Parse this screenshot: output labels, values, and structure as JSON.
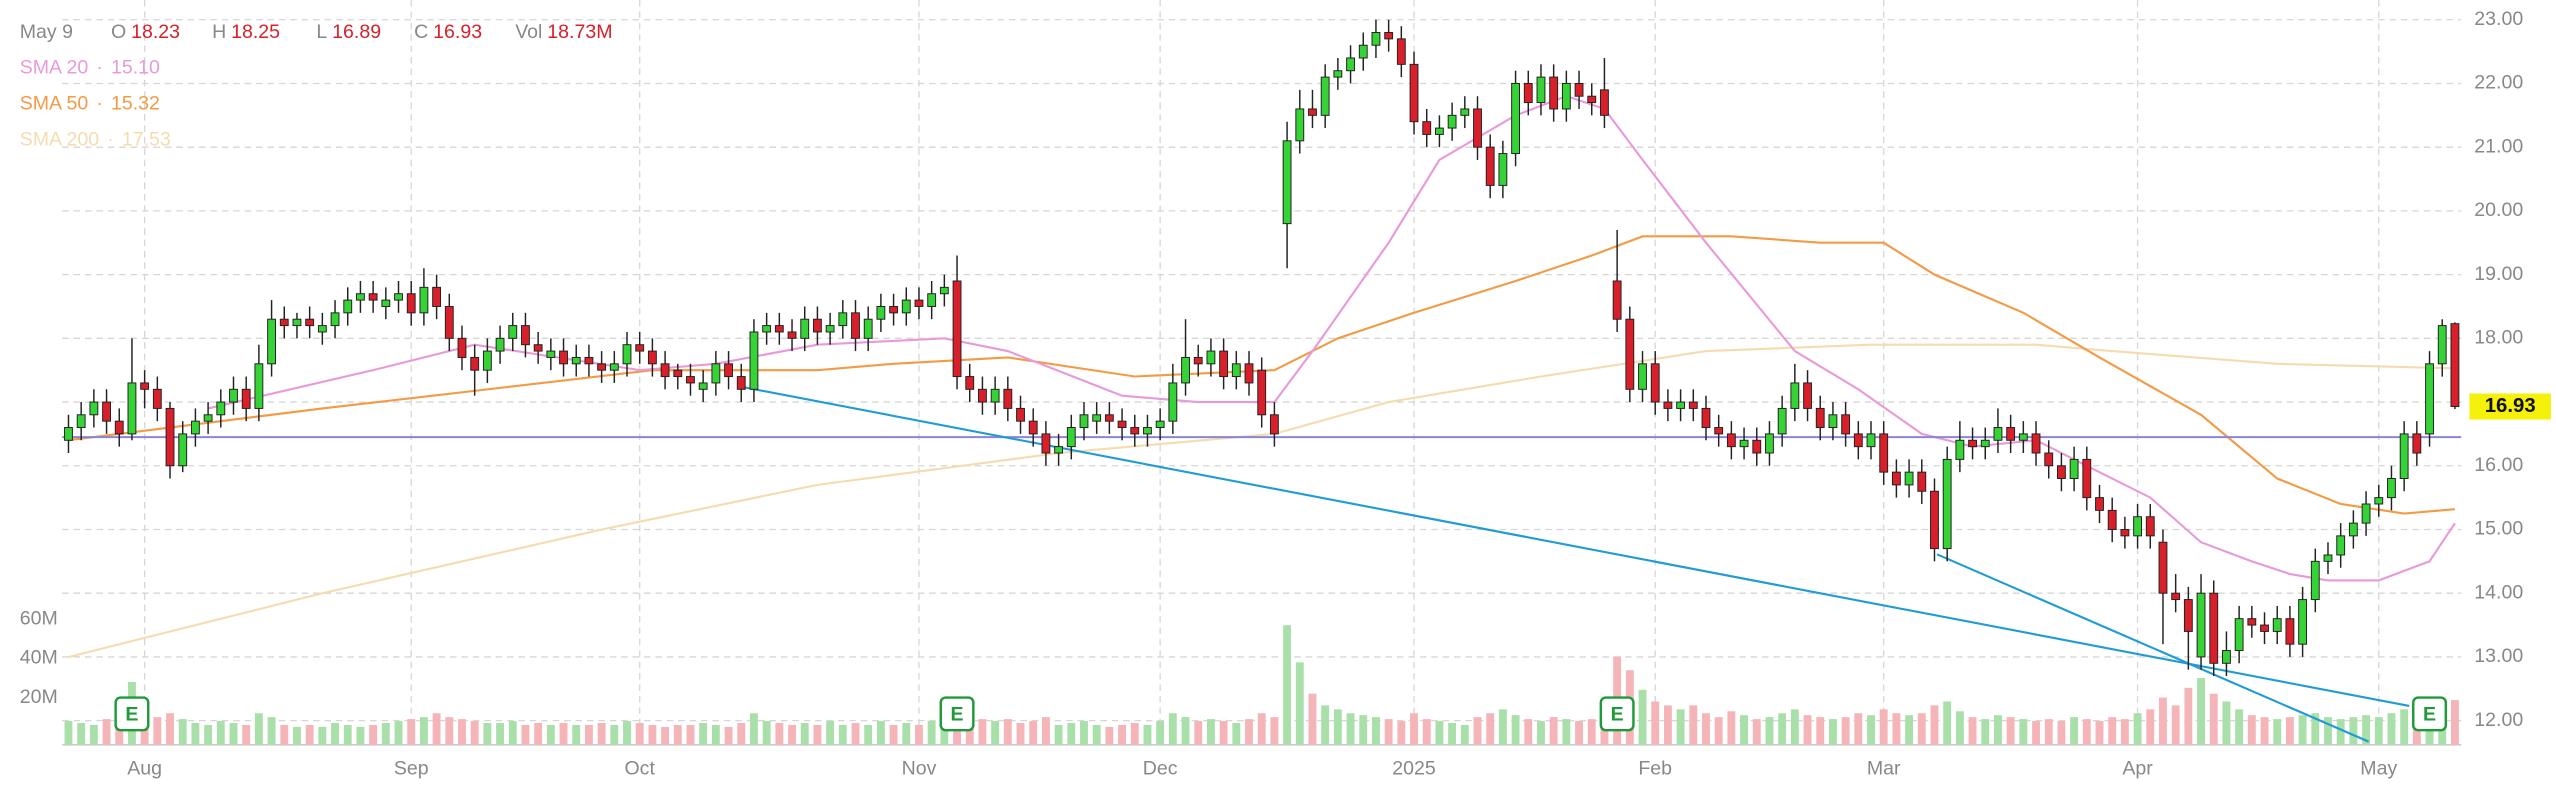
{
  "chart_data": {
    "type": "candlestick",
    "header": {
      "date": "May 9",
      "labels": [
        "O",
        "H",
        "L",
        "C",
        "Vol"
      ],
      "volume": "18.73M"
    },
    "xlim": [
      -0.5,
      188.5
    ],
    "xticks": [
      {
        "value": 6,
        "label": "Aug"
      },
      {
        "value": 27,
        "label": "Sep"
      },
      {
        "value": 45,
        "label": "Oct"
      },
      {
        "value": 67,
        "label": "Nov"
      },
      {
        "value": 86,
        "label": "Dec"
      },
      {
        "value": 106,
        "label": "2025"
      },
      {
        "value": 125,
        "label": "Feb"
      },
      {
        "value": 143,
        "label": "Mar"
      },
      {
        "value": 163,
        "label": "Apr"
      },
      {
        "value": 182,
        "label": "May"
      }
    ],
    "ylim": [
      11.62,
      23.31
    ],
    "yticks": [
      {
        "value": 12,
        "label": "12.00"
      },
      {
        "value": 13,
        "label": "13.00"
      },
      {
        "value": 14,
        "label": "14.00"
      },
      {
        "value": 15,
        "label": "15.00"
      },
      {
        "value": 16,
        "label": "16.00"
      },
      {
        "value": 17,
        "label": "17.00"
      },
      {
        "value": 18,
        "label": "18.00"
      },
      {
        "value": 19,
        "label": "19.00"
      },
      {
        "value": 20,
        "label": "20.00"
      },
      {
        "value": 21,
        "label": "21.00"
      },
      {
        "value": 22,
        "label": "22.00"
      },
      {
        "value": 23,
        "label": "23.00"
      }
    ],
    "vlim": [
      0,
      100
    ],
    "vticks": [
      {
        "value": 20,
        "label": "20M"
      },
      {
        "value": 40,
        "label": "40M"
      },
      {
        "value": 60,
        "label": "60M"
      }
    ],
    "grid": true,
    "up_color": "#35d335",
    "down_color": "#d9202a",
    "vol_up_color": "#a9dfa9",
    "vol_down_color": "#f5b5b8",
    "open": [
      16.4,
      16.6,
      16.8,
      17.0,
      16.7,
      16.5,
      17.3,
      17.2,
      16.9,
      16.0,
      16.5,
      16.7,
      16.8,
      17.0,
      17.2,
      16.9,
      17.6,
      18.3,
      18.2,
      18.3,
      18.1,
      18.2,
      18.4,
      18.6,
      18.7,
      18.5,
      18.6,
      18.7,
      18.4,
      18.8,
      18.5,
      18.0,
      17.7,
      17.5,
      17.8,
      18.0,
      18.2,
      17.9,
      17.7,
      17.8,
      17.6,
      17.7,
      17.6,
      17.5,
      17.6,
      17.9,
      17.8,
      17.6,
      17.5,
      17.4,
      17.2,
      17.3,
      17.6,
      17.4,
      17.2,
      18.1,
      18.2,
      18.1,
      18.0,
      18.3,
      18.1,
      18.2,
      18.4,
      18.0,
      18.3,
      18.5,
      18.4,
      18.6,
      18.5,
      18.7,
      18.9,
      17.4,
      17.2,
      17.0,
      17.2,
      16.9,
      16.7,
      16.5,
      16.2,
      16.3,
      16.6,
      16.7,
      16.8,
      16.7,
      16.6,
      16.5,
      16.6,
      16.7,
      17.3,
      17.7,
      17.6,
      17.8,
      17.4,
      17.6,
      17.5,
      16.8,
      19.8,
      21.1,
      21.6,
      21.5,
      22.1,
      22.2,
      22.4,
      22.6,
      22.8,
      22.7,
      22.3,
      21.4,
      21.2,
      21.3,
      21.5,
      21.6,
      21.0,
      20.4,
      20.9,
      22.0,
      21.7,
      22.1,
      21.6,
      22.0,
      21.8,
      21.9,
      18.9,
      18.3,
      17.2,
      17.6,
      17.0,
      16.9,
      17.0,
      16.9,
      16.6,
      16.5,
      16.3,
      16.4,
      16.2,
      16.5,
      16.9,
      17.3,
      16.9,
      16.6,
      16.8,
      16.5,
      16.3,
      16.5,
      15.9,
      15.7,
      15.9,
      15.6,
      14.7,
      16.1,
      16.4,
      16.3,
      16.4,
      16.6,
      16.4,
      16.5,
      16.2,
      16.0,
      15.8,
      16.1,
      15.5,
      15.3,
      15.0,
      14.9,
      15.2,
      14.8,
      14.0,
      13.9,
      13.0,
      14.0,
      12.9,
      13.1,
      13.6,
      13.5,
      13.4,
      13.6,
      13.2,
      13.9,
      14.5,
      14.6,
      14.9,
      15.1,
      15.4,
      15.5,
      15.8,
      16.5,
      16.5,
      17.6,
      18.23
    ],
    "high": [
      16.8,
      17.0,
      17.2,
      17.2,
      16.9,
      18.0,
      17.5,
      17.4,
      17.0,
      16.7,
      16.9,
      17.0,
      17.2,
      17.4,
      17.4,
      17.9,
      18.6,
      18.5,
      18.4,
      18.5,
      18.4,
      18.6,
      18.8,
      18.9,
      18.9,
      18.8,
      18.9,
      18.9,
      19.1,
      19.0,
      18.7,
      18.2,
      17.9,
      18.0,
      18.2,
      18.4,
      18.4,
      18.1,
      18.0,
      18.0,
      17.9,
      17.9,
      17.8,
      17.8,
      18.1,
      18.1,
      18.0,
      17.8,
      17.6,
      17.6,
      17.5,
      17.8,
      17.8,
      17.6,
      18.3,
      18.4,
      18.4,
      18.3,
      18.5,
      18.5,
      18.4,
      18.6,
      18.6,
      18.5,
      18.7,
      18.7,
      18.8,
      18.8,
      18.9,
      19.0,
      19.3,
      17.6,
      17.4,
      17.4,
      17.4,
      17.1,
      16.9,
      16.7,
      16.5,
      16.8,
      17.0,
      17.0,
      17.0,
      16.9,
      16.8,
      16.8,
      16.9,
      17.6,
      18.3,
      17.9,
      18.0,
      18.0,
      17.8,
      17.8,
      17.7,
      17.0,
      21.4,
      21.9,
      21.9,
      22.3,
      22.4,
      22.6,
      22.8,
      23.0,
      23.0,
      22.9,
      22.5,
      21.6,
      21.5,
      21.7,
      21.8,
      21.8,
      21.2,
      21.1,
      22.2,
      22.2,
      22.3,
      22.3,
      22.2,
      22.2,
      22.0,
      22.4,
      19.7,
      18.5,
      17.8,
      17.8,
      17.2,
      17.2,
      17.2,
      17.1,
      16.8,
      16.7,
      16.6,
      16.6,
      16.7,
      17.1,
      17.6,
      17.5,
      17.1,
      17.0,
      17.0,
      16.7,
      16.7,
      16.7,
      16.1,
      16.1,
      16.1,
      15.8,
      16.3,
      16.7,
      16.6,
      16.6,
      16.9,
      16.8,
      16.7,
      16.7,
      16.4,
      16.2,
      16.3,
      16.3,
      15.7,
      15.5,
      15.2,
      15.4,
      15.4,
      15.0,
      14.3,
      14.1,
      14.3,
      14.2,
      13.4,
      13.8,
      13.8,
      13.7,
      13.8,
      13.8,
      14.1,
      14.7,
      14.8,
      15.1,
      15.3,
      15.6,
      15.7,
      16.0,
      16.7,
      16.7,
      17.8,
      18.3,
      18.25
    ],
    "low": [
      16.2,
      16.4,
      16.6,
      16.5,
      16.3,
      16.4,
      16.9,
      16.7,
      15.8,
      15.9,
      16.3,
      16.5,
      16.6,
      16.8,
      16.7,
      16.7,
      17.4,
      18.0,
      18.0,
      18.0,
      17.9,
      18.0,
      18.2,
      18.4,
      18.4,
      18.3,
      18.4,
      18.2,
      18.2,
      18.3,
      17.8,
      17.5,
      17.1,
      17.3,
      17.6,
      17.8,
      17.7,
      17.6,
      17.5,
      17.4,
      17.4,
      17.4,
      17.3,
      17.3,
      17.4,
      17.6,
      17.4,
      17.2,
      17.2,
      17.1,
      17.0,
      17.1,
      17.2,
      17.0,
      17.0,
      17.9,
      17.9,
      17.8,
      17.8,
      17.9,
      17.9,
      18.0,
      17.8,
      17.8,
      18.1,
      18.2,
      18.2,
      18.3,
      18.3,
      18.5,
      17.2,
      17.0,
      16.8,
      16.8,
      16.7,
      16.5,
      16.3,
      16.0,
      16.0,
      16.1,
      16.4,
      16.5,
      16.5,
      16.4,
      16.3,
      16.3,
      16.4,
      16.5,
      17.1,
      17.4,
      17.4,
      17.2,
      17.2,
      17.1,
      16.6,
      16.3,
      19.1,
      20.9,
      21.3,
      21.3,
      21.9,
      22.0,
      22.2,
      22.4,
      22.5,
      22.1,
      21.2,
      21.0,
      21.0,
      21.1,
      21.3,
      20.8,
      20.2,
      20.2,
      20.7,
      21.5,
      21.5,
      21.4,
      21.4,
      21.6,
      21.5,
      21.3,
      18.1,
      17.0,
      17.0,
      16.8,
      16.7,
      16.7,
      16.7,
      16.4,
      16.3,
      16.1,
      16.1,
      16.0,
      16.0,
      16.3,
      16.7,
      16.7,
      16.4,
      16.4,
      16.3,
      16.1,
      16.1,
      15.7,
      15.5,
      15.5,
      15.4,
      14.5,
      14.5,
      15.9,
      16.1,
      16.1,
      16.2,
      16.2,
      16.2,
      16.0,
      15.8,
      15.6,
      15.6,
      15.3,
      15.1,
      14.8,
      14.7,
      14.7,
      14.7,
      13.2,
      13.7,
      12.8,
      12.8,
      12.7,
      12.7,
      12.9,
      13.3,
      13.2,
      13.2,
      13.0,
      13.0,
      13.7,
      14.3,
      14.4,
      14.7,
      14.9,
      15.2,
      15.3,
      15.6,
      16.0,
      16.3,
      17.4,
      16.89
    ],
    "close": [
      16.6,
      16.8,
      17.0,
      16.7,
      16.5,
      17.3,
      17.2,
      16.9,
      16.0,
      16.5,
      16.7,
      16.8,
      17.0,
      17.2,
      16.9,
      17.6,
      18.3,
      18.2,
      18.3,
      18.2,
      18.2,
      18.4,
      18.6,
      18.7,
      18.6,
      18.6,
      18.7,
      18.4,
      18.8,
      18.5,
      18.0,
      17.7,
      17.5,
      17.8,
      18.0,
      18.2,
      17.9,
      17.8,
      17.8,
      17.6,
      17.7,
      17.6,
      17.5,
      17.6,
      17.9,
      17.8,
      17.6,
      17.4,
      17.4,
      17.3,
      17.3,
      17.6,
      17.4,
      17.2,
      18.1,
      18.2,
      18.1,
      18.0,
      18.3,
      18.1,
      18.2,
      18.4,
      18.0,
      18.3,
      18.5,
      18.4,
      18.6,
      18.5,
      18.7,
      18.8,
      17.4,
      17.2,
      17.0,
      17.2,
      16.9,
      16.7,
      16.5,
      16.2,
      16.3,
      16.6,
      16.8,
      16.8,
      16.7,
      16.6,
      16.5,
      16.6,
      16.7,
      17.3,
      17.7,
      17.6,
      17.8,
      17.4,
      17.6,
      17.3,
      16.8,
      16.5,
      21.1,
      21.6,
      21.5,
      22.1,
      22.2,
      22.4,
      22.6,
      22.8,
      22.7,
      22.3,
      21.4,
      21.2,
      21.3,
      21.5,
      21.6,
      21.0,
      20.4,
      20.9,
      22.0,
      21.7,
      22.1,
      21.6,
      22.0,
      21.8,
      21.7,
      21.5,
      18.3,
      17.2,
      17.6,
      17.0,
      16.9,
      17.0,
      16.9,
      16.6,
      16.5,
      16.3,
      16.4,
      16.2,
      16.5,
      16.9,
      17.3,
      16.9,
      16.6,
      16.8,
      16.5,
      16.3,
      16.5,
      15.9,
      15.7,
      15.9,
      15.6,
      14.7,
      16.1,
      16.4,
      16.3,
      16.4,
      16.6,
      16.4,
      16.5,
      16.2,
      16.0,
      15.8,
      16.1,
      15.5,
      15.3,
      15.0,
      14.9,
      15.2,
      14.9,
      14.0,
      13.9,
      13.4,
      14.0,
      12.9,
      13.1,
      13.6,
      13.5,
      13.4,
      13.6,
      13.2,
      13.9,
      14.5,
      14.6,
      14.9,
      15.1,
      15.4,
      15.5,
      15.8,
      16.5,
      16.2,
      17.6,
      18.2,
      16.93
    ],
    "volume": [
      8,
      7,
      6,
      9,
      8,
      28,
      14,
      10,
      12,
      9,
      7,
      6,
      8,
      7,
      6,
      12,
      10,
      6,
      5,
      6,
      5,
      7,
      6,
      5,
      6,
      7,
      8,
      9,
      10,
      12,
      10,
      9,
      8,
      7,
      7,
      8,
      6,
      7,
      6,
      7,
      6,
      6,
      7,
      6,
      8,
      7,
      6,
      5,
      6,
      6,
      7,
      6,
      5,
      7,
      12,
      8,
      7,
      6,
      7,
      6,
      8,
      6,
      7,
      6,
      8,
      6,
      7,
      6,
      8,
      10,
      16,
      10,
      9,
      8,
      9,
      7,
      8,
      10,
      6,
      7,
      8,
      6,
      5,
      6,
      7,
      6,
      8,
      12,
      10,
      8,
      9,
      8,
      7,
      9,
      12,
      10,
      57,
      38,
      22,
      16,
      14,
      12,
      11,
      10,
      9,
      8,
      12,
      9,
      8,
      7,
      6,
      10,
      12,
      14,
      11,
      9,
      8,
      10,
      9,
      8,
      9,
      12,
      41,
      34,
      24,
      18,
      16,
      14,
      16,
      12,
      10,
      13,
      11,
      9,
      10,
      12,
      14,
      11,
      10,
      9,
      10,
      12,
      11,
      14,
      12,
      11,
      12,
      16,
      18,
      13,
      10,
      9,
      11,
      10,
      9,
      8,
      9,
      8,
      10,
      9,
      8,
      10,
      9,
      12,
      14,
      20,
      16,
      25,
      30,
      22,
      18,
      14,
      11,
      10,
      9,
      10,
      11,
      12,
      10,
      9,
      10,
      11,
      10,
      12,
      14,
      12,
      16,
      14,
      18.73
    ],
    "smas": [
      {
        "name": "SMA 20",
        "color": "#e89ad8",
        "value_label": "15.10",
        "x": [
          11,
          24,
          32,
          45,
          51,
          59,
          69,
          74,
          83,
          89,
          95,
          98,
          104,
          108,
          114,
          118,
          121,
          124,
          129,
          136,
          141,
          146,
          150,
          155,
          159,
          164,
          168,
          172,
          175,
          178,
          182,
          186,
          188
        ],
        "values": [
          16.9,
          17.5,
          17.9,
          17.5,
          17.6,
          17.9,
          18.0,
          17.8,
          17.1,
          17.0,
          17.0,
          17.8,
          19.5,
          20.8,
          21.5,
          21.8,
          21.6,
          20.8,
          19.5,
          17.8,
          17.2,
          16.5,
          16.3,
          16.4,
          16.0,
          15.5,
          14.8,
          14.5,
          14.3,
          14.2,
          14.2,
          14.5,
          15.1
        ]
      },
      {
        "name": "SMA 50",
        "color": "#f39a45",
        "value_label": "15.32",
        "x": [
          0,
          20,
          33,
          46,
          59,
          65,
          74,
          84,
          95,
          100,
          106,
          114,
          120,
          124,
          131,
          138,
          143,
          147,
          154,
          160,
          168,
          174,
          179,
          184,
          188
        ],
        "values": [
          16.4,
          16.9,
          17.2,
          17.5,
          17.5,
          17.6,
          17.7,
          17.4,
          17.5,
          18.0,
          18.4,
          18.9,
          19.3,
          19.6,
          19.6,
          19.5,
          19.5,
          19.0,
          18.4,
          17.7,
          16.8,
          15.8,
          15.4,
          15.25,
          15.32
        ]
      },
      {
        "name": "SMA 200",
        "color": "#f4dcae",
        "value_label": "17.53",
        "x": [
          0,
          20,
          42,
          59,
          78,
          95,
          104,
          116,
          129,
          142,
          155,
          161,
          174,
          188
        ],
        "values": [
          13.0,
          14.0,
          15.0,
          15.7,
          16.2,
          16.5,
          17.0,
          17.4,
          17.8,
          17.9,
          17.9,
          17.8,
          17.6,
          17.53
        ]
      }
    ],
    "legend_separator": "·",
    "hline": {
      "value": 16.45,
      "color": "#8c84d8"
    },
    "trendlines": [
      {
        "x": [
          53,
          184.4
        ],
        "y": [
          17.24,
          12.23
        ]
      },
      {
        "x": [
          147.2,
          181.2
        ],
        "y": [
          14.61,
          11.67
        ]
      }
    ],
    "trendline_color": "#1f9bd6",
    "earnings": {
      "label": "E",
      "x": [
        5,
        70,
        122,
        186
      ]
    },
    "price_badge_color": "#f5f10a"
  }
}
